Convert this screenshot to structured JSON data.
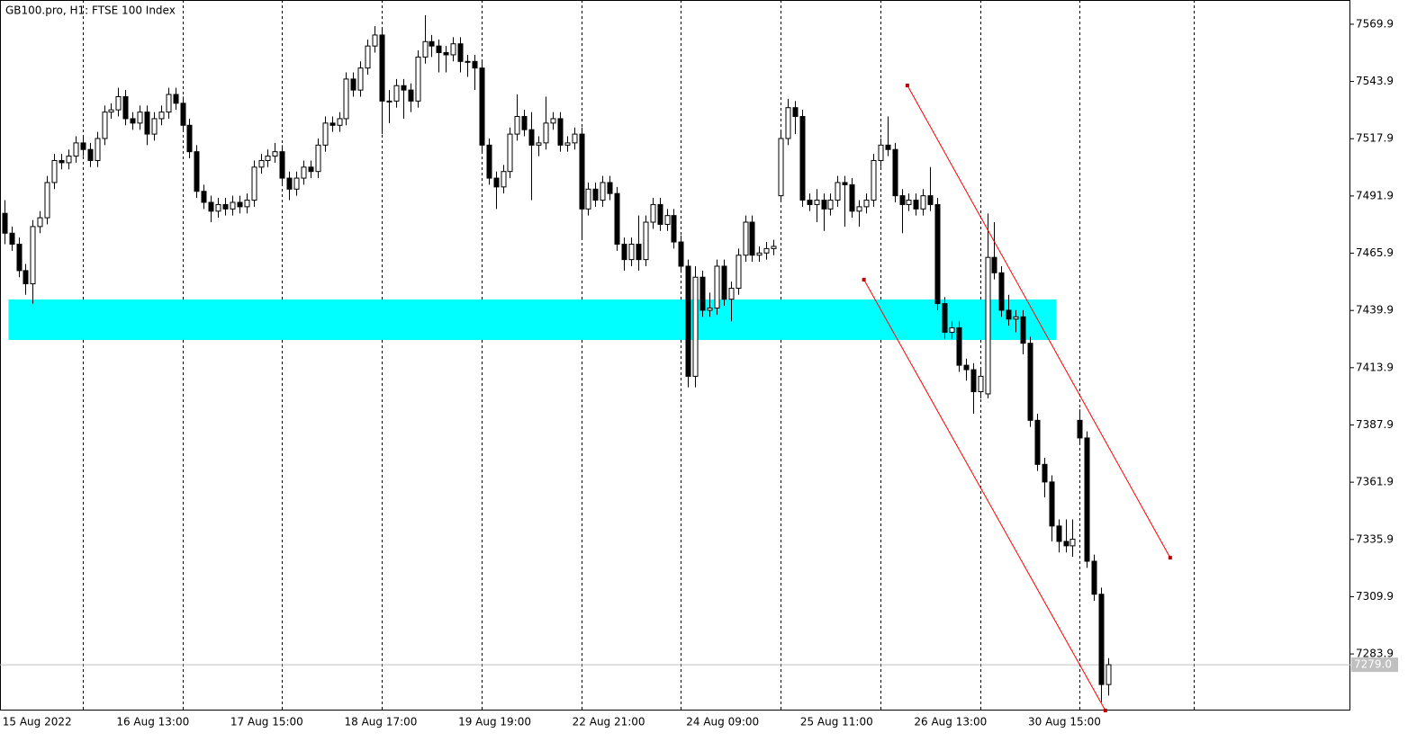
{
  "chart_data": {
    "type": "candlestick",
    "title": "GB100.pro, H1:  FTSE 100 Index",
    "categories": [
      "15 Aug 2022",
      null,
      null,
      null,
      null,
      null,
      null,
      null,
      null,
      null,
      null,
      null,
      null,
      null,
      null,
      null,
      "16 Aug 13:00",
      null,
      null,
      null,
      null,
      null,
      null,
      null,
      null,
      null,
      null,
      null,
      null,
      null,
      null,
      null,
      "17 Aug 15:00",
      null,
      null,
      null,
      null,
      null,
      null,
      null,
      null,
      null,
      null,
      null,
      null,
      null,
      null,
      null,
      "18 Aug 17:00",
      null,
      null,
      null,
      null,
      null,
      null,
      null,
      null,
      null,
      null,
      null,
      null,
      null,
      null,
      null,
      "19 Aug 19:00",
      null,
      null,
      null,
      null,
      null,
      null,
      null,
      null,
      null,
      null,
      null,
      null,
      null,
      null,
      null,
      "22 Aug 21:00",
      null,
      null,
      null,
      null,
      null,
      null,
      null,
      null,
      null,
      null,
      null,
      null,
      null,
      null,
      null,
      "24 Aug 09:00",
      null,
      null,
      null,
      null,
      null,
      null,
      null,
      null,
      null,
      null,
      null,
      null,
      null,
      null,
      null,
      "25 Aug 11:00",
      null,
      null,
      null,
      null,
      null,
      null,
      null,
      null,
      null,
      null,
      null,
      null,
      null,
      null,
      null,
      "26 Aug 13:00",
      null,
      null,
      null,
      null,
      null,
      null,
      null,
      null,
      null,
      null,
      null,
      null,
      null,
      null,
      null,
      "30 Aug 15:00",
      null,
      null,
      null,
      null,
      null,
      null,
      null,
      null,
      null,
      null,
      null
    ],
    "open": [
      7484,
      7475,
      7470,
      7458,
      7452,
      7478,
      7482,
      7498,
      7508,
      7507,
      7510,
      7516,
      7513,
      7508,
      7518,
      7530,
      7531,
      7537,
      7527,
      7525,
      7530,
      7520,
      7527,
      7530,
      7538,
      7534,
      7524,
      7512,
      7494,
      7489,
      7485,
      7488,
      7486,
      7489,
      7487,
      7490,
      7505,
      7508,
      7510,
      7512,
      7500,
      7495,
      7500,
      7505,
      7503,
      7515,
      7525,
      7524,
      7527,
      7545,
      7540,
      7550,
      7560,
      7565,
      7535,
      7535,
      7542,
      7540,
      7535,
      7555,
      7562,
      7560,
      7557,
      7556,
      7561,
      7553,
      7553,
      7550,
      7515,
      7500,
      7496,
      7503,
      7520,
      7528,
      7522,
      7515,
      7516,
      7525,
      7527,
      7515,
      7516,
      7520,
      7486,
      7495,
      7490,
      7498,
      7493,
      7470,
      7463,
      7470,
      7463,
      7480,
      7488,
      7479,
      7483,
      7471,
      7460,
      7410,
      7455,
      7440,
      7441,
      7460,
      7445,
      7450,
      7465,
      7480,
      7465,
      7466,
      7468,
      7492,
      7518,
      7532,
      7528,
      7490,
      7488,
      7490,
      7486,
      7490,
      7498,
      7497,
      7485,
      7487,
      7490,
      7508,
      7515,
      7513,
      7492,
      7488,
      7490,
      7486,
      7492,
      7488,
      7443,
      7430,
      7432,
      7415,
      7413,
      7403,
      7402,
      7464,
      7457,
      7440,
      7436,
      7437,
      7425,
      7390,
      7370,
      7362,
      7342,
      7335,
      7333,
      7390,
      7382,
      7326,
      7311,
      7270
    ],
    "high": [
      7490,
      7478,
      7473,
      7461,
      7481,
      7485,
      7501,
      7511,
      7511,
      7513,
      7519,
      7519,
      7516,
      7521,
      7533,
      7534,
      7541,
      7540,
      7530,
      7533,
      7533,
      7530,
      7533,
      7541,
      7541,
      7537,
      7527,
      7515,
      7497,
      7492,
      7491,
      7491,
      7492,
      7492,
      7493,
      7508,
      7511,
      7513,
      7516,
      7515,
      7503,
      7503,
      7508,
      7508,
      7518,
      7528,
      7528,
      7530,
      7548,
      7548,
      7553,
      7563,
      7569,
      7568,
      7540,
      7545,
      7545,
      7543,
      7558,
      7574,
      7565,
      7563,
      7560,
      7564,
      7564,
      7556,
      7556,
      7553,
      7518,
      7503,
      7506,
      7523,
      7538,
      7531,
      7530,
      7519,
      7537,
      7530,
      7530,
      7519,
      7523,
      7523,
      7498,
      7498,
      7501,
      7501,
      7496,
      7473,
      7473,
      7483,
      7483,
      7491,
      7491,
      7486,
      7486,
      7474,
      7463,
      7460,
      7458,
      7448,
      7463,
      7463,
      7453,
      7468,
      7483,
      7483,
      7469,
      7471,
      7472,
      7521,
      7536,
      7535,
      7531,
      7493,
      7495,
      7493,
      7493,
      7501,
      7501,
      7500,
      7490,
      7493,
      7511,
      7518,
      7528,
      7516,
      7495,
      7493,
      7493,
      7495,
      7505,
      7491,
      7446,
      7435,
      7435,
      7418,
      7416,
      7413,
      7484,
      7480,
      7460,
      7447,
      7440,
      7440,
      7428,
      7393,
      7373,
      7365,
      7345,
      7345,
      7345,
      7395,
      7385,
      7329,
      7314,
      7282
    ],
    "low": [
      7470,
      7467,
      7455,
      7447,
      7443,
      7475,
      7479,
      7495,
      7504,
      7504,
      7507,
      7510,
      7505,
      7505,
      7515,
      7527,
      7528,
      7524,
      7522,
      7522,
      7515,
      7517,
      7524,
      7527,
      7531,
      7521,
      7509,
      7491,
      7486,
      7480,
      7482,
      7483,
      7483,
      7484,
      7484,
      7487,
      7502,
      7505,
      7507,
      7497,
      7490,
      7492,
      7497,
      7500,
      7500,
      7512,
      7521,
      7521,
      7524,
      7537,
      7537,
      7547,
      7557,
      7520,
      7525,
      7532,
      7527,
      7530,
      7532,
      7552,
      7555,
      7548,
      7548,
      7553,
      7548,
      7546,
      7540,
      7512,
      7497,
      7486,
      7493,
      7500,
      7517,
      7519,
      7490,
      7510,
      7513,
      7522,
      7512,
      7512,
      7513,
      7473,
      7483,
      7487,
      7487,
      7490,
      7467,
      7458,
      7460,
      7458,
      7460,
      7477,
      7476,
      7476,
      7468,
      7457,
      7405,
      7405,
      7437,
      7437,
      7438,
      7442,
      7435,
      7447,
      7462,
      7462,
      7462,
      7463,
      7465,
      7489,
      7515,
      7520,
      7487,
      7485,
      7480,
      7476,
      7483,
      7487,
      7478,
      7482,
      7478,
      7484,
      7487,
      7505,
      7510,
      7489,
      7475,
      7485,
      7483,
      7483,
      7485,
      7440,
      7427,
      7427,
      7412,
      7408,
      7393,
      7400,
      7400,
      7454,
      7437,
      7433,
      7430,
      7420,
      7387,
      7367,
      7355,
      7335,
      7330,
      7330,
      7328,
      7379,
      7323,
      7308,
      7262,
      7265
    ],
    "close": [
      7475,
      7470,
      7458,
      7452,
      7478,
      7482,
      7498,
      7508,
      7507,
      7510,
      7516,
      7513,
      7508,
      7518,
      7530,
      7531,
      7537,
      7527,
      7525,
      7530,
      7520,
      7527,
      7530,
      7538,
      7534,
      7524,
      7512,
      7494,
      7489,
      7485,
      7488,
      7486,
      7489,
      7487,
      7490,
      7505,
      7508,
      7510,
      7512,
      7500,
      7495,
      7500,
      7505,
      7503,
      7515,
      7525,
      7524,
      7527,
      7545,
      7540,
      7550,
      7560,
      7565,
      7535,
      7535,
      7542,
      7540,
      7535,
      7555,
      7562,
      7560,
      7557,
      7556,
      7561,
      7553,
      7553,
      7550,
      7515,
      7500,
      7496,
      7503,
      7520,
      7528,
      7522,
      7515,
      7516,
      7525,
      7527,
      7515,
      7516,
      7520,
      7486,
      7495,
      7490,
      7498,
      7493,
      7470,
      7463,
      7470,
      7463,
      7480,
      7488,
      7479,
      7483,
      7471,
      7460,
      7410,
      7455,
      7440,
      7441,
      7460,
      7445,
      7450,
      7465,
      7480,
      7465,
      7466,
      7468,
      7469,
      7518,
      7532,
      7528,
      7490,
      7488,
      7490,
      7486,
      7490,
      7498,
      7497,
      7485,
      7487,
      7490,
      7508,
      7515,
      7513,
      7492,
      7488,
      7490,
      7486,
      7492,
      7488,
      7443,
      7430,
      7432,
      7415,
      7413,
      7403,
      7410,
      7464,
      7457,
      7440,
      7436,
      7437,
      7425,
      7390,
      7370,
      7362,
      7342,
      7335,
      7333,
      7336,
      7382,
      7326,
      7311,
      7270,
      7279
    ],
    "up_color": "#ffffff",
    "down_color": "#000000",
    "xlim": [
      -0.6,
      189
    ],
    "ylim": [
      7258.2,
      7580.9
    ],
    "yticks": [
      7569.9,
      7543.9,
      7517.9,
      7491.9,
      7465.9,
      7439.9,
      7413.9,
      7387.9,
      7361.9,
      7335.9,
      7309.9,
      7283.9
    ],
    "xgrid": [
      11,
      25,
      39,
      53,
      67,
      81,
      95,
      109,
      123,
      137,
      151,
      167
    ],
    "zone": {
      "x": [
        0.6,
        147.7
      ],
      "y": [
        7444.9,
        7426.5
      ],
      "color": "#00ffff"
    },
    "trendlines": [
      {
        "x": [
          126.8,
          163.7
        ],
        "y": [
          7542.1,
          7327.6
        ],
        "color": "#ff0000"
      },
      {
        "x": [
          120.7,
          154.6
        ],
        "y": [
          7453.9,
          7258.2
        ],
        "color": "#ff0000"
      }
    ],
    "last_price": {
      "value": 7279.0,
      "label": "7279.0"
    }
  }
}
